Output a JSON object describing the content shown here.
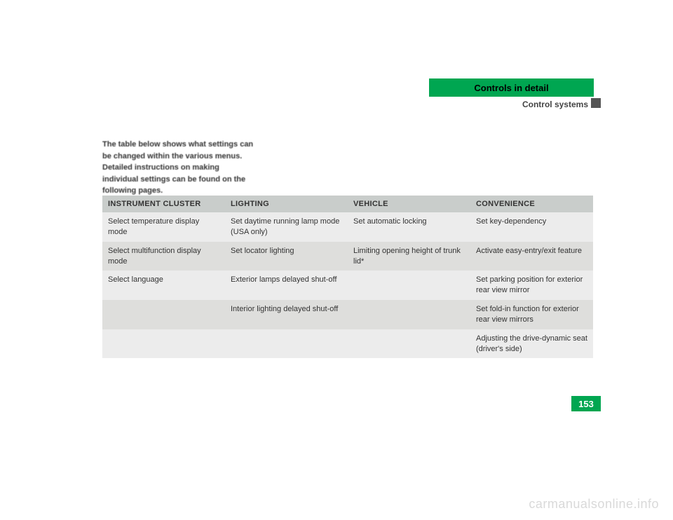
{
  "header": {
    "tab": "Controls in detail",
    "sub": "Control systems"
  },
  "intro": "The table below shows what settings can be changed within the various menus. Detailed instructions on making individual settings can be found on the following pages.",
  "table": {
    "headers": [
      "INSTRUMENT CLUSTER",
      "LIGHTING",
      "VEHICLE",
      "CONVENIENCE"
    ],
    "rows": [
      [
        "Select temperature display mode",
        "Set daytime running lamp mode (USA only)",
        "Set automatic locking",
        "Set key-dependency"
      ],
      [
        "Select multifunction display mode",
        "Set locator lighting",
        "Limiting opening height of trunk lid*",
        "Activate easy-entry/exit feature"
      ],
      [
        "Select language",
        "Exterior lamps delayed shut-off",
        "",
        "Set parking position for exterior rear view mirror"
      ],
      [
        "",
        "Interior lighting delayed shut-off",
        "",
        "Set fold-in function for exterior rear view mirrors"
      ],
      [
        "",
        "",
        "",
        "Adjusting the drive-dynamic seat (driver's side)"
      ]
    ]
  },
  "page_number": "153",
  "watermark": "carmanualsonline.info"
}
